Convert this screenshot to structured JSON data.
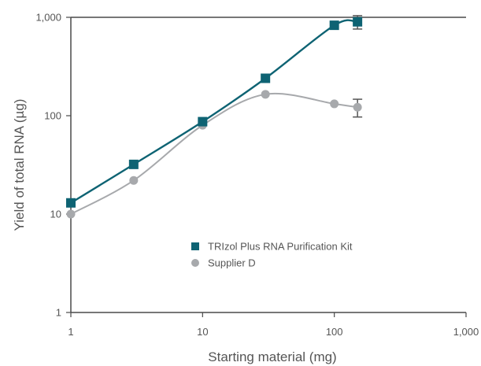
{
  "chart_data": {
    "type": "line",
    "xlabel": "Starting material (mg)",
    "ylabel": "Yield of total RNA (µg)",
    "xscale": "log",
    "yscale": "log",
    "xlim": [
      1,
      1000
    ],
    "ylim": [
      1,
      1000
    ],
    "xticks": [
      1,
      10,
      100,
      1000
    ],
    "xtick_labels": [
      "1",
      "10",
      "100",
      "1,000"
    ],
    "yticks": [
      1,
      10,
      100,
      1000
    ],
    "ytick_labels": [
      "1",
      "10",
      "100",
      "1,000"
    ],
    "grid": false,
    "legend_position": "center-right",
    "series": [
      {
        "name": "TRIzol Plus RNA Purification Kit",
        "marker": "square",
        "color": "#0e6373",
        "x": [
          1,
          3,
          10,
          30,
          100,
          150
        ],
        "y": [
          13,
          32,
          87,
          240,
          830,
          900
        ],
        "error": [
          null,
          null,
          null,
          null,
          null,
          140
        ]
      },
      {
        "name": "Supplier D",
        "marker": "circle",
        "color": "#a7a9ac",
        "x": [
          1,
          3,
          10,
          30,
          100,
          150
        ],
        "y": [
          10,
          22,
          80,
          165,
          132,
          122
        ],
        "error": [
          null,
          null,
          null,
          null,
          null,
          25
        ]
      }
    ]
  }
}
